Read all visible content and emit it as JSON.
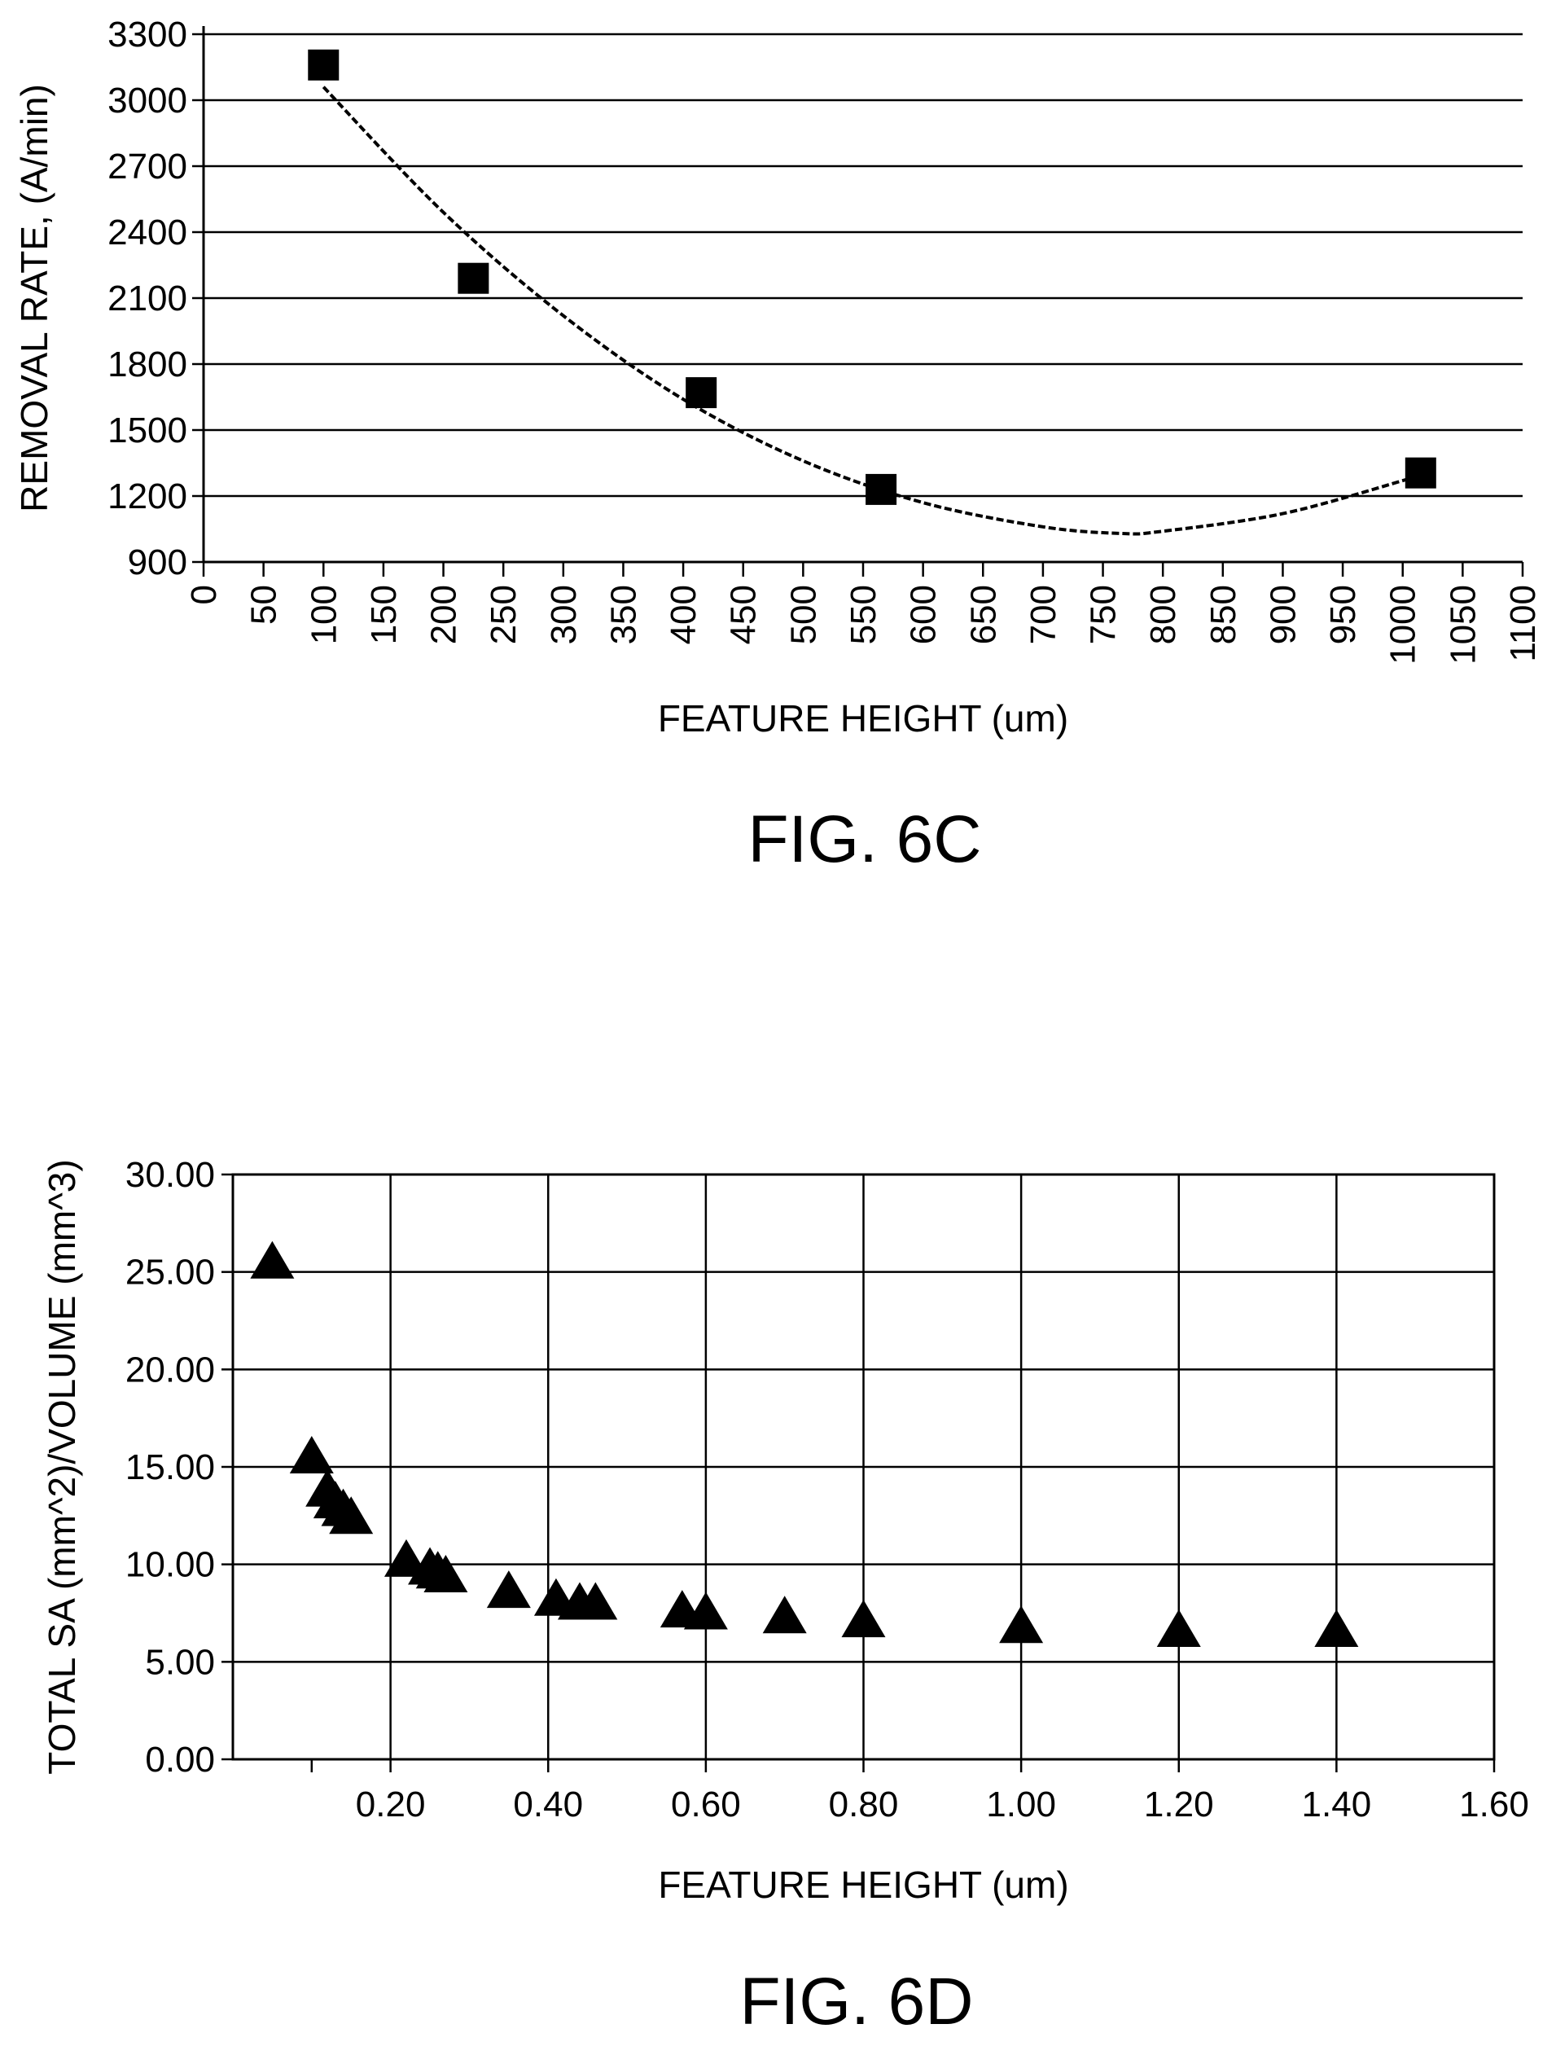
{
  "chart_data": [
    {
      "type": "scatter",
      "figure_label": "FIG. 6C",
      "xlabel": "FEATURE HEIGHT (um)",
      "ylabel": "REMOVAL RATE,  (A/min)",
      "xlim": [
        0,
        1100
      ],
      "ylim": [
        900,
        3300
      ],
      "xticks": [
        "0",
        "50",
        "100",
        "150",
        "200",
        "250",
        "300",
        "350",
        "400",
        "450",
        "500",
        "550",
        "600",
        "650",
        "700",
        "750",
        "800",
        "850",
        "900",
        "950",
        "1000",
        "1050",
        "1100"
      ],
      "yticks": [
        "900",
        "1200",
        "1500",
        "1800",
        "2100",
        "2400",
        "2700",
        "3000",
        "3300"
      ],
      "grid": "horizontal",
      "marker": "square",
      "series": [
        {
          "x": [
            100,
            225,
            415,
            565,
            1015
          ],
          "y": [
            3160,
            2190,
            1670,
            1230,
            1305
          ]
        }
      ],
      "trendline": {
        "type": "polynomial-order-2",
        "x_range": [
          100,
          1015
        ],
        "points": [
          [
            100,
            3060
          ],
          [
            200,
            2490
          ],
          [
            300,
            2020
          ],
          [
            400,
            1640
          ],
          [
            500,
            1360
          ],
          [
            600,
            1170
          ],
          [
            700,
            1060
          ],
          [
            765,
            1030
          ],
          [
            800,
            1040
          ],
          [
            900,
            1120
          ],
          [
            1000,
            1270
          ],
          [
            1015,
            1300
          ]
        ]
      }
    },
    {
      "type": "scatter",
      "figure_label": "FIG. 6D",
      "xlabel": "FEATURE HEIGHT (um)",
      "ylabel": "TOTAL SA (mm^2)/VOLUME (mm^3)",
      "xlim": [
        0,
        1.6
      ],
      "ylim": [
        0,
        30
      ],
      "xticks": [
        "0.20",
        "0.40",
        "0.60",
        "0.80",
        "1.00",
        "1.20",
        "1.40",
        "1.60"
      ],
      "yticks": [
        "0.00",
        "5.00",
        "10.00",
        "15.00",
        "20.00",
        "25.00",
        "30.00"
      ],
      "grid": "both",
      "marker": "triangle",
      "series": [
        {
          "x": [
            0.05,
            0.1,
            0.12,
            0.13,
            0.14,
            0.15,
            0.22,
            0.25,
            0.26,
            0.27,
            0.35,
            0.41,
            0.44,
            0.46,
            0.57,
            0.6,
            0.7,
            0.8,
            1.0,
            1.2,
            1.4
          ],
          "y": [
            25.5,
            15.5,
            13.8,
            13.2,
            12.8,
            12.4,
            10.2,
            9.8,
            9.6,
            9.4,
            8.6,
            8.2,
            8.0,
            8.0,
            7.6,
            7.5,
            7.3,
            7.1,
            6.8,
            6.6,
            6.6
          ]
        }
      ]
    }
  ]
}
